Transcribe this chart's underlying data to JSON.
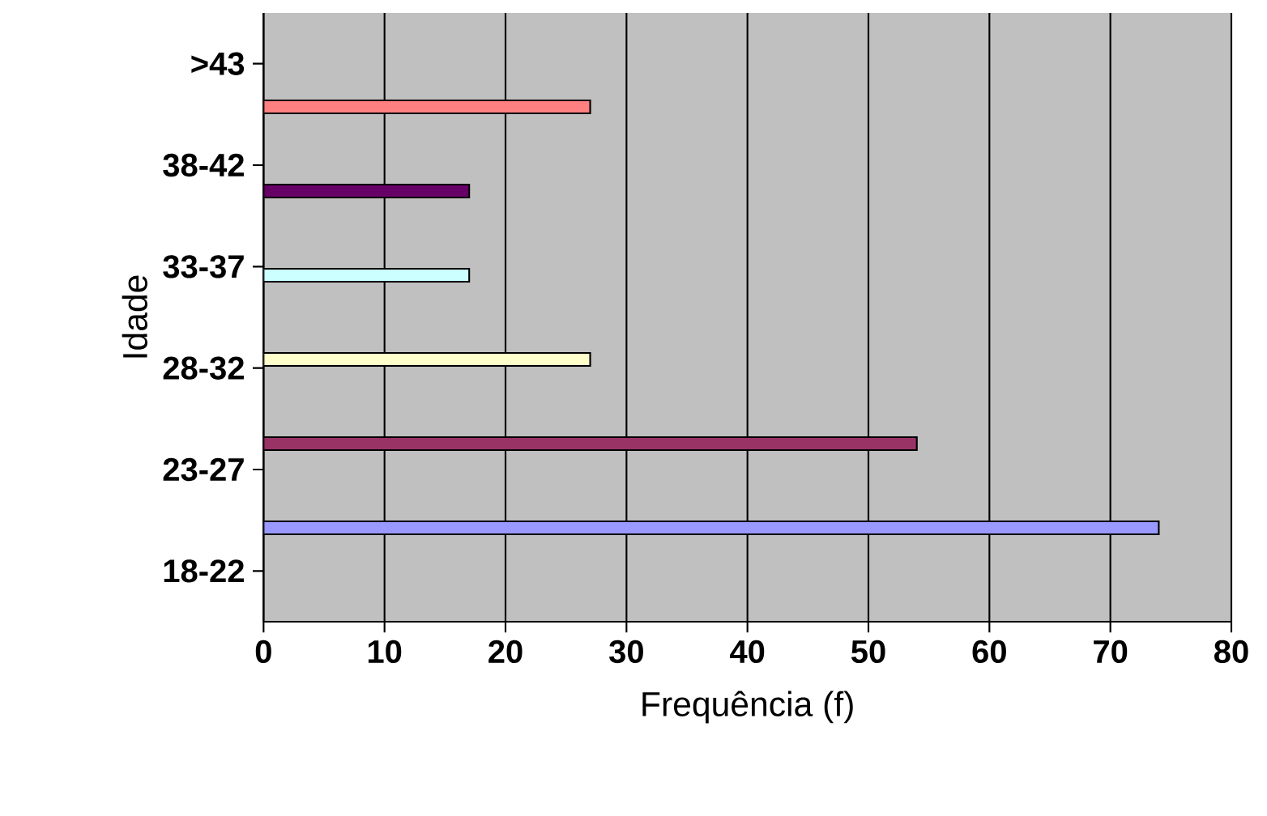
{
  "chart_data": {
    "type": "bar",
    "orientation": "horizontal",
    "xlabel": "Frequência (f)",
    "ylabel": "Idade",
    "categories": [
      ">43",
      "38-42",
      "33-37",
      "28-32",
      "23-27",
      "18-22"
    ],
    "values": [
      27,
      17,
      17,
      27,
      54,
      74
    ],
    "colors": [
      "#ff8080",
      "#660066",
      "#ccffff",
      "#ffffcc",
      "#993366",
      "#9999ff"
    ],
    "xlim": [
      0,
      80
    ],
    "xticks": [
      0,
      10,
      20,
      30,
      40,
      50,
      60,
      70,
      80
    ],
    "grid": "x"
  }
}
